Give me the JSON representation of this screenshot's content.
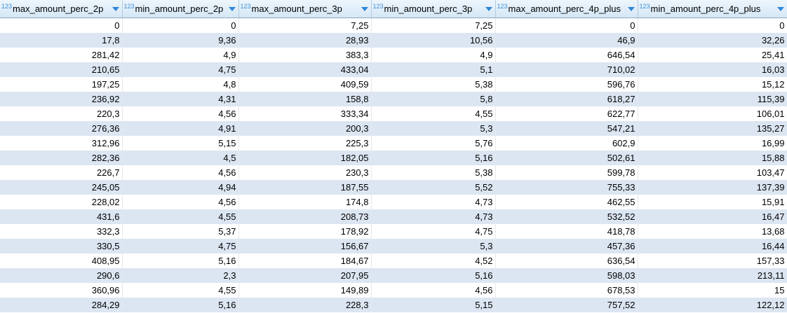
{
  "columns": [
    {
      "type_badge": "123",
      "name": "max_amount_perc_2p"
    },
    {
      "type_badge": "123",
      "name": "min_amount_perc_2p"
    },
    {
      "type_badge": "123",
      "name": "max_amount_perc_3p"
    },
    {
      "type_badge": "123",
      "name": "min_amount_perc_3p"
    },
    {
      "type_badge": "123",
      "name": "max_amount_perc_4p_plus"
    },
    {
      "type_badge": "123",
      "name": "min_amount_perc_4p_plus"
    }
  ],
  "rows": [
    [
      "0",
      "0",
      "7,25",
      "7,25",
      "0",
      "0"
    ],
    [
      "17,8",
      "9,36",
      "28,93",
      "10,56",
      "46,9",
      "32,26"
    ],
    [
      "281,42",
      "4,9",
      "383,3",
      "4,9",
      "646,54",
      "25,41"
    ],
    [
      "210,65",
      "4,75",
      "433,04",
      "5,1",
      "710,02",
      "16,03"
    ],
    [
      "197,25",
      "4,8",
      "409,59",
      "5,38",
      "596,76",
      "15,12"
    ],
    [
      "236,92",
      "4,31",
      "158,8",
      "5,8",
      "618,27",
      "115,39"
    ],
    [
      "220,3",
      "4,56",
      "333,34",
      "4,55",
      "622,77",
      "106,01"
    ],
    [
      "276,36",
      "4,91",
      "200,3",
      "5,3",
      "547,21",
      "135,27"
    ],
    [
      "312,96",
      "5,15",
      "225,3",
      "5,76",
      "602,9",
      "16,99"
    ],
    [
      "282,36",
      "4,5",
      "182,05",
      "5,16",
      "502,61",
      "15,88"
    ],
    [
      "226,7",
      "4,56",
      "230,3",
      "5,38",
      "599,78",
      "103,47"
    ],
    [
      "245,05",
      "4,94",
      "187,55",
      "5,52",
      "755,33",
      "137,39"
    ],
    [
      "228,02",
      "4,56",
      "174,8",
      "4,73",
      "462,55",
      "15,91"
    ],
    [
      "431,6",
      "4,55",
      "208,73",
      "4,73",
      "532,52",
      "16,47"
    ],
    [
      "332,3",
      "5,37",
      "178,92",
      "4,75",
      "418,78",
      "13,68"
    ],
    [
      "330,5",
      "4,75",
      "156,67",
      "5,3",
      "457,36",
      "16,44"
    ],
    [
      "408,95",
      "5,16",
      "184,67",
      "4,52",
      "636,54",
      "157,33"
    ],
    [
      "290,6",
      "2,3",
      "207,95",
      "5,16",
      "598,03",
      "213,11"
    ],
    [
      "360,96",
      "4,55",
      "149,89",
      "4,56",
      "678,53",
      "15"
    ],
    [
      "284,29",
      "5,16",
      "228,3",
      "5,15",
      "757,52",
      "122,12"
    ]
  ],
  "colors": {
    "header_bg": "#d5e7f6",
    "row_stripe": "#dce6f2",
    "type_badge": "#3a8fd9",
    "sort_arrow": "#2f86d6"
  },
  "icons": {
    "type_badge": "numeric-type-icon",
    "column_menu": "chevron-down-icon"
  }
}
